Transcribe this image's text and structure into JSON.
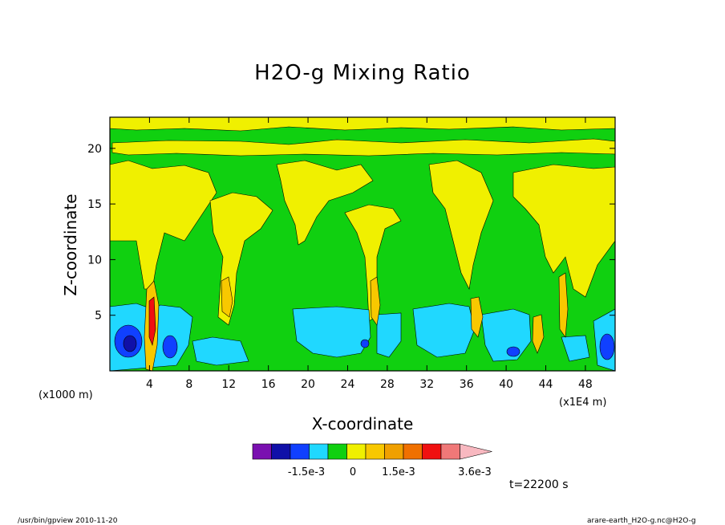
{
  "chart_data": {
    "type": "heatmap",
    "title": "H2O-g Mixing Ratio",
    "xlabel": "X-coordinate",
    "ylabel": "Z-coordinate",
    "x_unit_left": "(x1000 m)",
    "x_unit_right": "(x1E4 m)",
    "xticks": [
      4,
      8,
      12,
      16,
      20,
      24,
      28,
      32,
      36,
      40,
      44,
      48
    ],
    "yticks": [
      5,
      10,
      15,
      20
    ],
    "xlim": [
      0,
      51
    ],
    "ylim": [
      0,
      22.8
    ],
    "colorbar": {
      "colors": [
        "#7a10b0",
        "#1010a8",
        "#1040ff",
        "#20d8ff",
        "#10d010",
        "#f0f000",
        "#f8c800",
        "#f0a000",
        "#f07000",
        "#f01010",
        "#f07878",
        "#f8b8c0"
      ],
      "tick_labels": [
        "-1.5e-3",
        "0",
        "1.5e-3",
        "3.6e-3"
      ]
    },
    "time_label": "t=22200 s"
  },
  "footer": {
    "left": "/usr/bin/gpview  2010-11-20",
    "right": "arare-earth_H2O-g.nc@H2O-g"
  }
}
